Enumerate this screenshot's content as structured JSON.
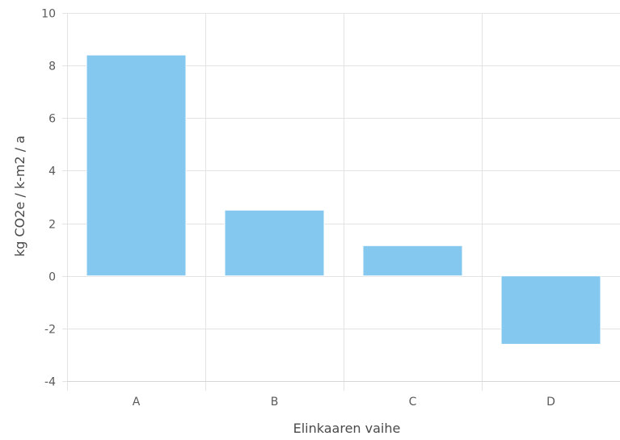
{
  "chart_data": {
    "type": "bar",
    "title": "",
    "xlabel": "Elinkaaren vaihe",
    "ylabel": "kg CO2e / k-m2 / a",
    "categories": [
      "A",
      "B",
      "C",
      "D"
    ],
    "values": [
      8.4,
      2.5,
      1.15,
      -2.6
    ],
    "ylim": [
      -4,
      10
    ],
    "yticks": [
      10,
      8,
      6,
      4,
      2,
      0,
      -2,
      -4
    ],
    "grid": true,
    "legend": "none",
    "bar_color": "#84c8ef",
    "grid_color": "#e3e3e3"
  }
}
